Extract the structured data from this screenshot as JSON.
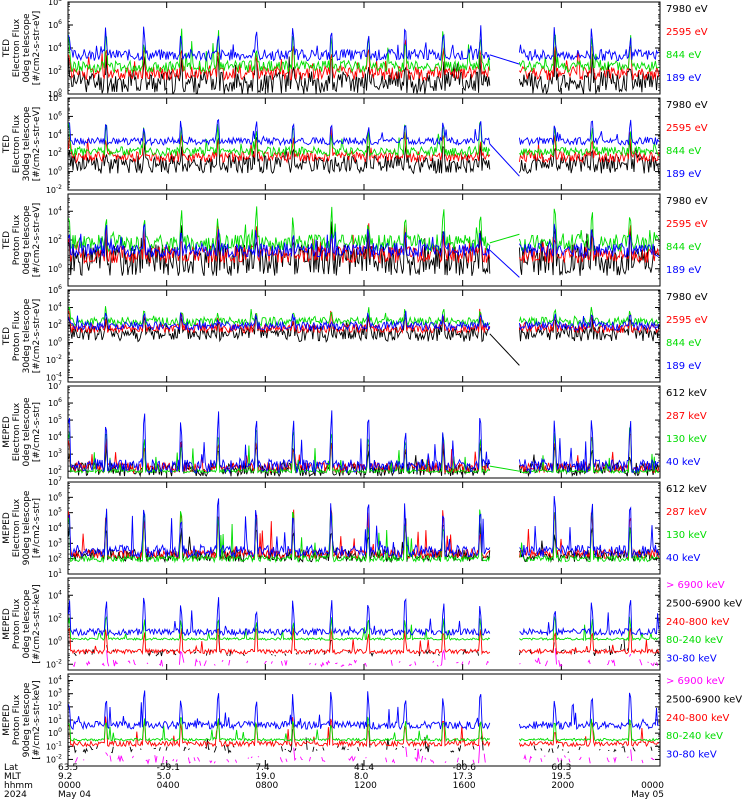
{
  "colors": {
    "black": "#000000",
    "blue": "#0000ff",
    "red": "#ff0000",
    "green": "#00dd00",
    "magenta": "#ff00ff"
  },
  "chart_data": [
    {
      "type": "line",
      "ylabel": [
        "TED",
        "Electron Flux",
        "0deg telescope",
        "[#/cm2-s-str-eV]"
      ],
      "ytick_exps": [
        0,
        2,
        4,
        6,
        8
      ],
      "ylim_exp": [
        0,
        8
      ],
      "series": [
        {
          "name": "7980 eV",
          "color": "black",
          "base": 1.0,
          "amp": 1.0,
          "spike": 2.0,
          "seed": 11
        },
        {
          "name": "2595 eV",
          "color": "red",
          "base": 1.8,
          "amp": 0.6,
          "spike": 2.4,
          "seed": 12
        },
        {
          "name": "844 eV",
          "color": "green",
          "base": 2.4,
          "amp": 0.5,
          "spike": 2.6,
          "seed": 13
        },
        {
          "name": "189 eV",
          "color": "blue",
          "base": 3.4,
          "amp": 0.5,
          "spike": 2.0,
          "seed": 14
        }
      ],
      "gap_lines": [
        {
          "color": "blue",
          "from_exp": 3.4,
          "to_exp": 2.6
        }
      ]
    },
    {
      "type": "line",
      "ylabel": [
        "TED",
        "Electron Flux",
        "30deg telescope",
        "[#/cm2-s-str-eV]"
      ],
      "ytick_exps": [
        -2,
        0,
        2,
        4,
        6,
        8
      ],
      "ylim_exp": [
        -2,
        8
      ],
      "series": [
        {
          "name": "7980 eV",
          "color": "black",
          "base": 0.8,
          "amp": 1.0,
          "spike": 2.2,
          "seed": 21
        },
        {
          "name": "2595 eV",
          "color": "red",
          "base": 1.6,
          "amp": 0.6,
          "spike": 2.5,
          "seed": 22
        },
        {
          "name": "844 eV",
          "color": "green",
          "base": 2.2,
          "amp": 0.5,
          "spike": 2.6,
          "seed": 23
        },
        {
          "name": "189 eV",
          "color": "blue",
          "base": 3.3,
          "amp": 0.4,
          "spike": 2.0,
          "seed": 24
        }
      ],
      "gap_lines": [
        {
          "color": "blue",
          "from_exp": 3.0,
          "to_exp": -0.5
        }
      ]
    },
    {
      "type": "line",
      "ylabel": [
        "TED",
        "Proton Flux",
        "0deg telescope",
        "[#/cm2-s-str-eV]"
      ],
      "ytick_exps": [
        0,
        2,
        4
      ],
      "ylim_exp": [
        -1.2,
        5.2
      ],
      "series": [
        {
          "name": "7980 eV",
          "color": "black",
          "base": 0.6,
          "amp": 1.1,
          "spike": 1.8,
          "seed": 31
        },
        {
          "name": "2595 eV",
          "color": "red",
          "base": 1.0,
          "amp": 0.6,
          "spike": 1.8,
          "seed": 32
        },
        {
          "name": "844 eV",
          "color": "green",
          "base": 1.8,
          "amp": 0.6,
          "spike": 2.0,
          "seed": 33
        },
        {
          "name": "189 eV",
          "color": "blue",
          "base": 1.3,
          "amp": 0.5,
          "spike": 1.4,
          "seed": 34
        }
      ],
      "gap_lines": [
        {
          "color": "green",
          "from_exp": 1.8,
          "to_exp": 2.4
        },
        {
          "color": "blue",
          "from_exp": 1.3,
          "to_exp": -0.6
        }
      ]
    },
    {
      "type": "line",
      "ylabel": [
        "TED",
        "Proton Flux",
        "30deg telescope",
        "[#/cm2-s-str-eV]"
      ],
      "ytick_exps": [
        -4,
        -2,
        0,
        2,
        4,
        6
      ],
      "ylim_exp": [
        -4.5,
        6
      ],
      "series": [
        {
          "name": "7980 eV",
          "color": "black",
          "base": 1.0,
          "amp": 0.9,
          "spike": 1.5,
          "seed": 41
        },
        {
          "name": "2595 eV",
          "color": "red",
          "base": 1.6,
          "amp": 0.5,
          "spike": 1.6,
          "seed": 42
        },
        {
          "name": "844 eV",
          "color": "green",
          "base": 2.4,
          "amp": 0.5,
          "spike": 1.4,
          "seed": 43
        },
        {
          "name": "189 eV",
          "color": "blue",
          "base": 1.9,
          "amp": 0.5,
          "spike": 1.2,
          "seed": 44
        }
      ],
      "gap_lines": [
        {
          "color": "black",
          "from_exp": 1.0,
          "to_exp": -2.6
        }
      ]
    },
    {
      "type": "line",
      "ylabel": [
        "MEPED",
        "Electron Flux",
        "0deg telescope",
        "[#/cm2-s-str]"
      ],
      "ytick_exps": [
        2,
        3,
        4,
        5,
        6,
        7
      ],
      "ylim_exp": [
        1.6,
        7
      ],
      "series": [
        {
          "name": "612 keV",
          "color": "black",
          "base": 2.1,
          "amp": 0.4,
          "spike": 1.3,
          "seed": 51
        },
        {
          "name": "287 keV",
          "color": "red",
          "base": 2.2,
          "amp": 0.3,
          "spike": 1.7,
          "seed": 52
        },
        {
          "name": "130 keV",
          "color": "green",
          "base": 2.0,
          "amp": 0.1,
          "spike": 2.2,
          "seed": 53
        },
        {
          "name": "40 keV",
          "color": "blue",
          "base": 2.3,
          "amp": 0.4,
          "spike": 2.8,
          "seed": 54
        }
      ],
      "gap_lines": [
        {
          "color": "green",
          "from_exp": 2.3,
          "to_exp": 2.0
        }
      ]
    },
    {
      "type": "line",
      "ylabel": [
        "MEPED",
        "Electron Flux",
        "90deg telescope",
        "[#/cm2-s-str]"
      ],
      "ytick_exps": [
        1,
        2,
        3,
        4,
        5,
        6,
        7
      ],
      "ylim_exp": [
        1,
        7
      ],
      "series": [
        {
          "name": "612 keV",
          "color": "black",
          "base": 2.2,
          "amp": 0.4,
          "spike": 2.0,
          "seed": 61
        },
        {
          "name": "287 keV",
          "color": "red",
          "base": 2.3,
          "amp": 0.3,
          "spike": 2.7,
          "seed": 62
        },
        {
          "name": "130 keV",
          "color": "green",
          "base": 2.0,
          "amp": 0.2,
          "spike": 3.0,
          "seed": 63
        },
        {
          "name": "40 keV",
          "color": "blue",
          "base": 2.5,
          "amp": 0.4,
          "spike": 3.2,
          "seed": 64
        }
      ],
      "gap_lines": []
    },
    {
      "type": "line",
      "ylabel": [
        "MEPED",
        "Proton Flux",
        "0deg telescope",
        "[#/cm2-s-str-keV]"
      ],
      "ytick_exps": [
        -2,
        0,
        2,
        4
      ],
      "ylim_exp": [
        -2.5,
        5.5
      ],
      "series": [
        {
          "name": "> 6900 keV",
          "color": "magenta",
          "base": -1.9,
          "amp": 0.3,
          "spike": 1.2,
          "seed": 71,
          "sparse": true
        },
        {
          "name": "2500-6900 keV",
          "color": "black",
          "base": -1.0,
          "amp": 0.3,
          "spike": 1.8,
          "seed": 72,
          "sparse": true
        },
        {
          "name": "240-800 keV",
          "color": "red",
          "base": -0.9,
          "amp": 0.2,
          "spike": 2.0,
          "seed": 73
        },
        {
          "name": "80-240 keV",
          "color": "green",
          "base": 0.2,
          "amp": 0.1,
          "spike": 1.8,
          "seed": 74
        },
        {
          "name": "30-80 keV",
          "color": "blue",
          "base": 0.8,
          "amp": 0.3,
          "spike": 2.6,
          "seed": 75
        }
      ],
      "gap_lines": []
    },
    {
      "type": "line",
      "ylabel": [
        "MEPED",
        "Proton Flux",
        "90deg telescope",
        "[#/cm2-s-str-keV]"
      ],
      "ytick_exps": [
        -2,
        -1,
        0,
        1,
        2,
        3,
        4
      ],
      "ylim_exp": [
        -2.5,
        4.5
      ],
      "series": [
        {
          "name": "> 6900 keV",
          "color": "magenta",
          "base": -2.0,
          "amp": 0.3,
          "spike": 1.0,
          "seed": 81,
          "sparse": true
        },
        {
          "name": "2500-6900 keV",
          "color": "black",
          "base": -1.2,
          "amp": 0.3,
          "spike": 1.8,
          "seed": 82,
          "sparse": true
        },
        {
          "name": "240-800 keV",
          "color": "red",
          "base": -0.8,
          "amp": 0.2,
          "spike": 1.8,
          "seed": 83
        },
        {
          "name": "80-240 keV",
          "color": "green",
          "base": -0.5,
          "amp": 0.1,
          "spike": 1.6,
          "seed": 84
        },
        {
          "name": "30-80 keV",
          "color": "blue",
          "base": 0.6,
          "amp": 0.3,
          "spike": 2.4,
          "seed": 85
        }
      ],
      "gap_lines": []
    }
  ],
  "x_axis": {
    "row_labels": [
      "Lat",
      "MLT",
      "hhmm",
      "2024"
    ],
    "ticks": [
      {
        "t": 0,
        "lat": "63.5",
        "mlt": "9.2",
        "hhmm": "0000",
        "date": "May 04"
      },
      {
        "t": 4,
        "lat": "-59.1",
        "mlt": "5.0",
        "hhmm": "0400",
        "date": ""
      },
      {
        "t": 8,
        "lat": "7.4",
        "mlt": "19.0",
        "hhmm": "0800",
        "date": ""
      },
      {
        "t": 12,
        "lat": "41.4",
        "mlt": "8.0",
        "hhmm": "1200",
        "date": ""
      },
      {
        "t": 16,
        "lat": "-80.6",
        "mlt": "17.3",
        "hhmm": "1600",
        "date": ""
      },
      {
        "t": 20,
        "lat": "66.3",
        "mlt": "19.5",
        "hhmm": "2000",
        "date": ""
      },
      {
        "t": 24,
        "lat": "",
        "mlt": "",
        "hhmm": "0000",
        "date": "May 05"
      }
    ],
    "data_gap_hours": [
      17.1,
      18.3
    ],
    "xlim_hours": [
      0,
      24
    ]
  }
}
